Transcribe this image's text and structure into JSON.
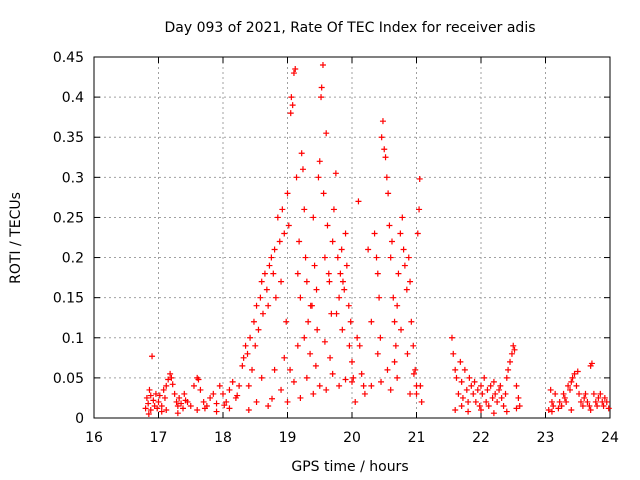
{
  "chart_data": {
    "type": "scatter",
    "title": "Day 093 of 2021, Rate Of TEC Index for receiver adis",
    "xlabel": "GPS time / hours",
    "ylabel": "ROTI / TECUs",
    "xlim": [
      16,
      24
    ],
    "ylim": [
      0,
      0.45
    ],
    "grid": true,
    "marker": "+",
    "color": "#ff0000",
    "x_ticks": [
      16,
      17,
      18,
      19,
      20,
      21,
      22,
      23,
      24
    ],
    "x_tick_labels": [
      "16",
      "17",
      "18",
      "19",
      "20",
      "21",
      "22",
      "23",
      "24"
    ],
    "y_ticks": [
      0,
      0.05,
      0.1,
      0.15,
      0.2,
      0.25,
      0.3,
      0.35,
      0.4,
      0.45
    ],
    "y_tick_labels": [
      "0",
      "0.05",
      "0.1",
      "0.15",
      "0.2",
      "0.25",
      "0.3",
      "0.35",
      "0.4",
      "0.45"
    ],
    "series": [
      {
        "name": "ROTI",
        "points": [
          [
            16.8,
            0.012
          ],
          [
            16.82,
            0.025
          ],
          [
            16.84,
            0.018
          ],
          [
            16.86,
            0.035
          ],
          [
            16.88,
            0.01
          ],
          [
            16.9,
            0.077
          ],
          [
            16.92,
            0.022
          ],
          [
            16.94,
            0.015
          ],
          [
            16.96,
            0.03
          ],
          [
            16.98,
            0.012
          ],
          [
            17.0,
            0.02
          ],
          [
            17.02,
            0.028
          ],
          [
            17.05,
            0.015
          ],
          [
            17.08,
            0.035
          ],
          [
            17.1,
            0.025
          ],
          [
            17.12,
            0.04
          ],
          [
            17.15,
            0.048
          ],
          [
            17.18,
            0.055
          ],
          [
            17.2,
            0.05
          ],
          [
            17.22,
            0.042
          ],
          [
            17.25,
            0.03
          ],
          [
            17.28,
            0.02
          ],
          [
            17.3,
            0.015
          ],
          [
            17.32,
            0.025
          ],
          [
            17.35,
            0.018
          ],
          [
            17.38,
            0.012
          ],
          [
            17.4,
            0.03
          ],
          [
            17.45,
            0.02
          ],
          [
            17.5,
            0.015
          ],
          [
            17.55,
            0.04
          ],
          [
            17.6,
            0.05
          ],
          [
            17.62,
            0.048
          ],
          [
            17.65,
            0.035
          ],
          [
            17.7,
            0.02
          ],
          [
            17.75,
            0.015
          ],
          [
            17.8,
            0.025
          ],
          [
            17.85,
            0.03
          ],
          [
            17.9,
            0.018
          ],
          [
            17.95,
            0.04
          ],
          [
            18.0,
            0.03
          ],
          [
            18.05,
            0.02
          ],
          [
            18.1,
            0.035
          ],
          [
            18.15,
            0.045
          ],
          [
            18.2,
            0.025
          ],
          [
            18.25,
            0.04
          ],
          [
            18.3,
            0.065
          ],
          [
            18.32,
            0.075
          ],
          [
            18.35,
            0.09
          ],
          [
            18.38,
            0.08
          ],
          [
            18.4,
            0.04
          ],
          [
            18.42,
            0.1
          ],
          [
            18.45,
            0.06
          ],
          [
            18.48,
            0.12
          ],
          [
            18.5,
            0.09
          ],
          [
            18.52,
            0.14
          ],
          [
            18.55,
            0.11
          ],
          [
            18.58,
            0.15
          ],
          [
            18.6,
            0.17
          ],
          [
            18.62,
            0.13
          ],
          [
            18.65,
            0.18
          ],
          [
            18.68,
            0.16
          ],
          [
            18.7,
            0.14
          ],
          [
            18.72,
            0.19
          ],
          [
            18.75,
            0.2
          ],
          [
            18.78,
            0.18
          ],
          [
            18.8,
            0.21
          ],
          [
            18.82,
            0.15
          ],
          [
            18.85,
            0.25
          ],
          [
            18.88,
            0.22
          ],
          [
            18.9,
            0.17
          ],
          [
            18.92,
            0.26
          ],
          [
            18.95,
            0.23
          ],
          [
            18.98,
            0.12
          ],
          [
            19.0,
            0.28
          ],
          [
            19.02,
            0.24
          ],
          [
            19.05,
            0.38
          ],
          [
            19.06,
            0.4
          ],
          [
            19.08,
            0.39
          ],
          [
            19.1,
            0.43
          ],
          [
            19.12,
            0.435
          ],
          [
            19.14,
            0.3
          ],
          [
            19.16,
            0.18
          ],
          [
            19.18,
            0.22
          ],
          [
            19.2,
            0.15
          ],
          [
            19.22,
            0.33
          ],
          [
            19.24,
            0.31
          ],
          [
            19.26,
            0.26
          ],
          [
            19.28,
            0.2
          ],
          [
            19.3,
            0.17
          ],
          [
            19.32,
            0.12
          ],
          [
            19.35,
            0.08
          ],
          [
            19.38,
            0.14
          ],
          [
            19.4,
            0.25
          ],
          [
            19.42,
            0.19
          ],
          [
            19.45,
            0.16
          ],
          [
            19.48,
            0.3
          ],
          [
            19.5,
            0.32
          ],
          [
            19.52,
            0.4
          ],
          [
            19.53,
            0.412
          ],
          [
            19.55,
            0.44
          ],
          [
            19.56,
            0.28
          ],
          [
            19.58,
            0.2
          ],
          [
            19.6,
            0.355
          ],
          [
            19.62,
            0.24
          ],
          [
            19.65,
            0.17
          ],
          [
            19.68,
            0.13
          ],
          [
            19.7,
            0.22
          ],
          [
            19.72,
            0.26
          ],
          [
            19.75,
            0.305
          ],
          [
            19.78,
            0.2
          ],
          [
            19.8,
            0.15
          ],
          [
            19.82,
            0.18
          ],
          [
            19.85,
            0.11
          ],
          [
            19.88,
            0.16
          ],
          [
            19.9,
            0.23
          ],
          [
            19.92,
            0.19
          ],
          [
            19.95,
            0.14
          ],
          [
            19.98,
            0.12
          ],
          [
            20.0,
            0.07
          ],
          [
            20.02,
            0.05
          ],
          [
            20.05,
            0.02
          ],
          [
            20.08,
            0.1
          ],
          [
            20.1,
            0.27
          ],
          [
            20.12,
            0.09
          ],
          [
            20.15,
            0.055
          ],
          [
            20.18,
            0.04
          ],
          [
            20.2,
            0.03
          ],
          [
            20.25,
            0.21
          ],
          [
            20.3,
            0.12
          ],
          [
            20.35,
            0.23
          ],
          [
            20.38,
            0.2
          ],
          [
            20.4,
            0.18
          ],
          [
            20.42,
            0.15
          ],
          [
            20.44,
            0.1
          ],
          [
            20.46,
            0.35
          ],
          [
            20.48,
            0.37
          ],
          [
            20.5,
            0.335
          ],
          [
            20.52,
            0.325
          ],
          [
            20.54,
            0.3
          ],
          [
            20.56,
            0.28
          ],
          [
            20.58,
            0.24
          ],
          [
            20.6,
            0.2
          ],
          [
            20.62,
            0.22
          ],
          [
            20.64,
            0.15
          ],
          [
            20.66,
            0.12
          ],
          [
            20.68,
            0.09
          ],
          [
            20.7,
            0.14
          ],
          [
            20.72,
            0.18
          ],
          [
            20.75,
            0.23
          ],
          [
            20.78,
            0.25
          ],
          [
            20.8,
            0.21
          ],
          [
            20.82,
            0.19
          ],
          [
            20.85,
            0.16
          ],
          [
            20.88,
            0.2
          ],
          [
            20.9,
            0.17
          ],
          [
            20.92,
            0.12
          ],
          [
            20.95,
            0.09
          ],
          [
            20.98,
            0.06
          ],
          [
            21.0,
            0.03
          ],
          [
            21.02,
            0.23
          ],
          [
            21.04,
            0.26
          ],
          [
            21.05,
            0.298
          ],
          [
            21.06,
            0.04
          ],
          [
            21.08,
            0.02
          ],
          [
            16.85,
            0.005
          ],
          [
            17.05,
            0.008
          ],
          [
            17.3,
            0.006
          ],
          [
            17.6,
            0.01
          ],
          [
            17.9,
            0.008
          ],
          [
            18.1,
            0.012
          ],
          [
            18.4,
            0.01
          ],
          [
            18.7,
            0.015
          ],
          [
            19.0,
            0.02
          ],
          [
            19.2,
            0.025
          ],
          [
            19.4,
            0.03
          ],
          [
            19.6,
            0.035
          ],
          [
            19.8,
            0.04
          ],
          [
            20.0,
            0.045
          ],
          [
            20.3,
            0.04
          ],
          [
            20.6,
            0.035
          ],
          [
            20.9,
            0.03
          ],
          [
            19.1,
            0.045
          ],
          [
            19.3,
            0.05
          ],
          [
            19.5,
            0.04
          ],
          [
            19.7,
            0.055
          ],
          [
            19.9,
            0.048
          ],
          [
            20.45,
            0.045
          ],
          [
            20.7,
            0.05
          ],
          [
            21.0,
            0.04
          ],
          [
            18.9,
            0.035
          ],
          [
            21.55,
            0.1
          ],
          [
            21.57,
            0.08
          ],
          [
            21.6,
            0.06
          ],
          [
            21.62,
            0.05
          ],
          [
            21.65,
            0.03
          ],
          [
            21.68,
            0.07
          ],
          [
            21.7,
            0.045
          ],
          [
            21.72,
            0.025
          ],
          [
            21.75,
            0.06
          ],
          [
            21.78,
            0.035
          ],
          [
            21.8,
            0.02
          ],
          [
            21.82,
            0.05
          ],
          [
            21.85,
            0.04
          ],
          [
            21.88,
            0.03
          ],
          [
            21.9,
            0.045
          ],
          [
            21.92,
            0.02
          ],
          [
            21.95,
            0.035
          ],
          [
            21.98,
            0.015
          ],
          [
            22.0,
            0.04
          ],
          [
            22.02,
            0.03
          ],
          [
            22.05,
            0.05
          ],
          [
            22.08,
            0.02
          ],
          [
            22.1,
            0.035
          ],
          [
            22.12,
            0.015
          ],
          [
            22.15,
            0.04
          ],
          [
            22.18,
            0.025
          ],
          [
            22.2,
            0.045
          ],
          [
            22.22,
            0.03
          ],
          [
            22.25,
            0.02
          ],
          [
            22.28,
            0.035
          ],
          [
            22.3,
            0.04
          ],
          [
            22.32,
            0.025
          ],
          [
            22.35,
            0.015
          ],
          [
            22.38,
            0.03
          ],
          [
            22.4,
            0.05
          ],
          [
            22.42,
            0.06
          ],
          [
            22.45,
            0.07
          ],
          [
            22.48,
            0.08
          ],
          [
            22.5,
            0.09
          ],
          [
            22.52,
            0.085
          ],
          [
            22.55,
            0.04
          ],
          [
            22.58,
            0.025
          ],
          [
            22.6,
            0.015
          ],
          [
            21.6,
            0.01
          ],
          [
            21.8,
            0.008
          ],
          [
            22.0,
            0.01
          ],
          [
            22.2,
            0.006
          ],
          [
            22.4,
            0.008
          ],
          [
            22.55,
            0.012
          ],
          [
            21.7,
            0.015
          ],
          [
            23.05,
            0.01
          ],
          [
            23.08,
            0.035
          ],
          [
            23.1,
            0.02
          ],
          [
            23.12,
            0.015
          ],
          [
            23.15,
            0.03
          ],
          [
            23.2,
            0.012
          ],
          [
            23.22,
            0.02
          ],
          [
            23.25,
            0.015
          ],
          [
            23.28,
            0.03
          ],
          [
            23.3,
            0.025
          ],
          [
            23.32,
            0.02
          ],
          [
            23.35,
            0.04
          ],
          [
            23.38,
            0.035
          ],
          [
            23.4,
            0.045
          ],
          [
            23.42,
            0.05
          ],
          [
            23.45,
            0.055
          ],
          [
            23.48,
            0.04
          ],
          [
            23.5,
            0.058
          ],
          [
            23.52,
            0.03
          ],
          [
            23.55,
            0.02
          ],
          [
            23.58,
            0.015
          ],
          [
            23.6,
            0.025
          ],
          [
            23.62,
            0.03
          ],
          [
            23.65,
            0.02
          ],
          [
            23.68,
            0.015
          ],
          [
            23.7,
            0.065
          ],
          [
            23.72,
            0.068
          ],
          [
            23.75,
            0.03
          ],
          [
            23.78,
            0.02
          ],
          [
            23.8,
            0.015
          ],
          [
            23.82,
            0.025
          ],
          [
            23.85,
            0.03
          ],
          [
            23.88,
            0.02
          ],
          [
            23.9,
            0.015
          ],
          [
            23.92,
            0.025
          ],
          [
            23.95,
            0.02
          ],
          [
            23.98,
            0.012
          ],
          [
            23.1,
            0.008
          ],
          [
            23.4,
            0.01
          ],
          [
            23.7,
            0.01
          ],
          [
            16.88,
            0.028
          ],
          [
            17.12,
            0.01
          ],
          [
            17.42,
            0.022
          ],
          [
            17.72,
            0.012
          ],
          [
            18.02,
            0.016
          ],
          [
            18.22,
            0.028
          ],
          [
            18.52,
            0.02
          ],
          [
            18.76,
            0.024
          ],
          [
            19.04,
            0.06
          ],
          [
            19.16,
            0.09
          ],
          [
            19.26,
            0.1
          ],
          [
            19.36,
            0.14
          ],
          [
            19.46,
            0.11
          ],
          [
            19.58,
            0.095
          ],
          [
            19.66,
            0.075
          ],
          [
            19.76,
            0.13
          ],
          [
            19.86,
            0.17
          ],
          [
            19.96,
            0.09
          ],
          [
            20.4,
            0.08
          ],
          [
            20.55,
            0.06
          ],
          [
            20.66,
            0.07
          ],
          [
            20.76,
            0.11
          ],
          [
            20.86,
            0.08
          ],
          [
            20.96,
            0.055
          ],
          [
            18.6,
            0.05
          ],
          [
            18.8,
            0.06
          ],
          [
            18.95,
            0.075
          ],
          [
            19.44,
            0.065
          ],
          [
            19.64,
            0.18
          ],
          [
            19.84,
            0.21
          ]
        ]
      }
    ]
  }
}
